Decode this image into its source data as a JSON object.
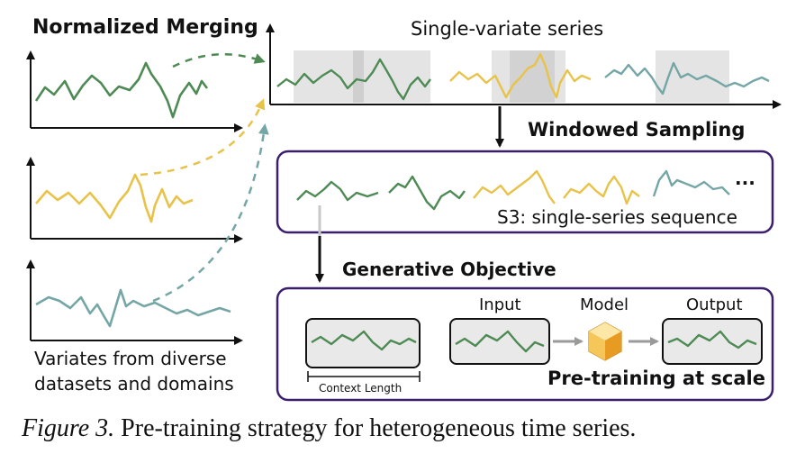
{
  "labels": {
    "normalized_merging": "Normalized Merging",
    "single_variate_series": "Single-variate series",
    "windowed_sampling": "Windowed Sampling",
    "s3_sequence": "S3: single-series sequence",
    "ellipsis": "...",
    "generative_objective": "Generative Objective",
    "variates_line1": "Variates from diverse",
    "variates_line2": "datasets and domains",
    "context_length": "Context Length",
    "input": "Input",
    "model": "Model",
    "output": "Output",
    "pretraining_at_scale": "Pre-training at scale"
  },
  "caption": {
    "figure_label": "Figure 3.",
    "text": " Pre-training strategy for heterogeneous time series."
  },
  "colors": {
    "green": "#4e8a54",
    "yellow": "#e8c34a",
    "teal": "#74a6a6",
    "purple": "#3b1f6e",
    "window_gray": "#e4e4e4",
    "arrow_gray": "#9a9a9a",
    "cube": "#f2b43c"
  },
  "icons": {
    "model": "cube-icon"
  }
}
